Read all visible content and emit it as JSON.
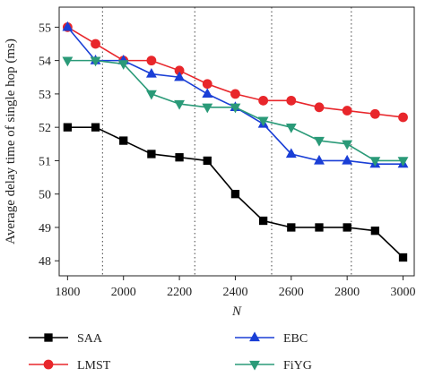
{
  "chart_data": {
    "type": "line",
    "xlabel": "N",
    "ylabel": "Average delay time of single hop (ms)",
    "x": [
      1800,
      1900,
      2000,
      2100,
      2200,
      2300,
      2400,
      2500,
      2600,
      2700,
      2800,
      2900,
      3000
    ],
    "xticks": [
      1800,
      2000,
      2200,
      2400,
      2600,
      2800,
      3000
    ],
    "yticks": [
      48,
      49,
      50,
      51,
      52,
      53,
      54,
      55
    ],
    "xlim": [
      1770,
      3040
    ],
    "ylim": [
      47.55,
      55.6
    ],
    "grid": false,
    "dotted_vlines_x": [
      1925,
      2255,
      2530,
      2815
    ],
    "legend_position": "below",
    "series": [
      {
        "name": "SAA",
        "color": "#000000",
        "marker": "square",
        "values": [
          52.0,
          52.0,
          51.6,
          51.2,
          51.1,
          51.0,
          50.0,
          49.2,
          49.0,
          49.0,
          49.0,
          48.9,
          48.1
        ]
      },
      {
        "name": "LMST",
        "color": "#e8262b",
        "marker": "circle",
        "values": [
          55.0,
          54.5,
          54.0,
          54.0,
          53.7,
          53.3,
          53.0,
          52.8,
          52.8,
          52.6,
          52.5,
          52.4,
          52.3
        ]
      },
      {
        "name": "EBC",
        "color": "#1a3fd6",
        "marker": "triangle-up",
        "values": [
          55.0,
          54.0,
          54.0,
          53.6,
          53.5,
          53.0,
          52.6,
          52.1,
          51.2,
          51.0,
          51.0,
          50.9,
          50.9
        ]
      },
      {
        "name": "FiYG",
        "color": "#2a9a78",
        "marker": "triangle-down",
        "values": [
          54.0,
          54.0,
          53.9,
          53.0,
          52.7,
          52.6,
          52.6,
          52.2,
          52.0,
          51.6,
          51.5,
          51.0,
          51.0
        ]
      }
    ]
  }
}
